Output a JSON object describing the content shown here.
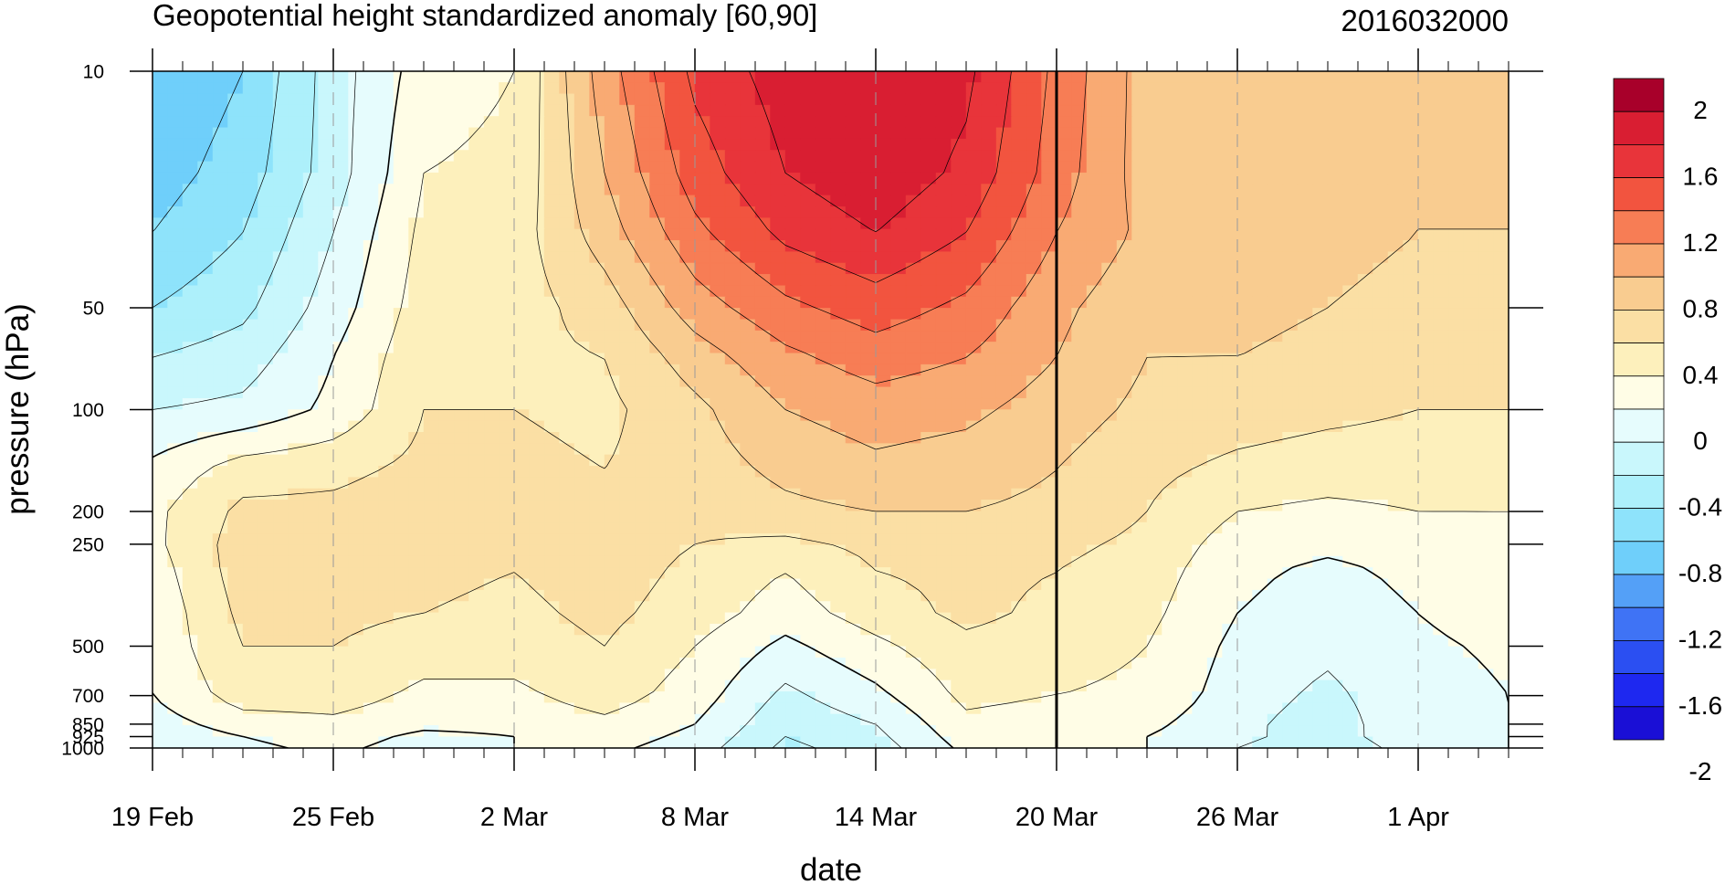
{
  "chart_data": {
    "type": "heatmap",
    "title": "Geopotential height standardized anomaly [60,90]",
    "timestamp": "2016032000",
    "xlabel": "date",
    "ylabel": "pressure (hPa)",
    "x_ticks": [
      {
        "day": 0,
        "label": "19 Feb"
      },
      {
        "day": 6,
        "label": "25 Feb"
      },
      {
        "day": 12,
        "label": "2 Mar"
      },
      {
        "day": 18,
        "label": "8 Mar"
      },
      {
        "day": 24,
        "label": "14 Mar"
      },
      {
        "day": 30,
        "label": "20 Mar"
      },
      {
        "day": 36,
        "label": "26 Mar"
      },
      {
        "day": 42,
        "label": "1 Apr"
      }
    ],
    "x_range_days": [
      0,
      45
    ],
    "y_ticks": [
      {
        "p": 10,
        "label": "10"
      },
      {
        "p": 50,
        "label": "50"
      },
      {
        "p": 100,
        "label": "100"
      },
      {
        "p": 200,
        "label": "200"
      },
      {
        "p": 250,
        "label": "250"
      },
      {
        "p": 500,
        "label": "500"
      },
      {
        "p": 700,
        "label": "700"
      },
      {
        "p": 850,
        "label": "850"
      },
      {
        "p": 925,
        "label": "925"
      },
      {
        "p": 1000,
        "label": "1000"
      }
    ],
    "y_range_hpa": [
      1000,
      10
    ],
    "y_scale": "log",
    "current_date_marker": "20 Mar",
    "levels": [
      -2,
      -1.8,
      -1.6,
      -1.4,
      -1.2,
      -1,
      -0.8,
      -0.6,
      -0.4,
      -0.2,
      0,
      0.2,
      0.4,
      0.6,
      0.8,
      1,
      1.2,
      1.4,
      1.6,
      1.8,
      2
    ],
    "colorbar_labels": [
      "2",
      "1.6",
      "1.2",
      "0.8",
      "0.4",
      "0",
      "-0.4",
      "-0.8",
      "-1.2",
      "-1.6",
      "-2"
    ],
    "colors": [
      "#1a0fd6",
      "#1e28f0",
      "#2b4ff2",
      "#3f73f5",
      "#54a0f7",
      "#6fcffa",
      "#8ee3fb",
      "#adf0fb",
      "#c9f7fc",
      "#e6fcfd",
      "#fffde6",
      "#fdf0bc",
      "#fbdfa4",
      "#f9cc90",
      "#f9aa73",
      "#f77d55",
      "#f2543f",
      "#e8343a",
      "#d91e32",
      "#a8002a"
    ],
    "pressure_levels": [
      10,
      20,
      30,
      50,
      70,
      100,
      150,
      200,
      250,
      300,
      400,
      500,
      700,
      850,
      925,
      1000
    ],
    "time_series_days": [
      0,
      3,
      6,
      9,
      12,
      15,
      18,
      21,
      24,
      27,
      30,
      33,
      36,
      39,
      42,
      45
    ],
    "anomaly_grid": [
      [
        -1.0,
        -0.8,
        -0.3,
        0.1,
        0.2,
        0.9,
        1.45,
        1.7,
        1.8,
        1.65,
        1.15,
        0.7,
        0.7,
        0.6,
        0.6,
        0.6
      ],
      [
        -0.9,
        -0.7,
        -0.3,
        0.2,
        0.25,
        0.8,
        1.3,
        1.6,
        1.75,
        1.55,
        1.1,
        0.7,
        0.7,
        0.65,
        0.6,
        0.6
      ],
      [
        -0.8,
        -0.6,
        -0.2,
        0.25,
        0.3,
        0.7,
        1.15,
        1.45,
        1.6,
        1.4,
        1.0,
        0.75,
        0.7,
        0.65,
        0.6,
        0.6
      ],
      [
        -0.6,
        -0.45,
        -0.1,
        0.3,
        0.3,
        0.5,
        0.9,
        1.15,
        1.3,
        1.15,
        0.85,
        0.65,
        0.65,
        0.6,
        0.55,
        0.55
      ],
      [
        -0.4,
        -0.3,
        0.0,
        0.35,
        0.35,
        0.4,
        0.7,
        0.95,
        1.1,
        1.0,
        0.8,
        0.6,
        0.6,
        0.55,
        0.5,
        0.5
      ],
      [
        -0.2,
        -0.15,
        0.05,
        0.4,
        0.4,
        0.35,
        0.55,
        0.8,
        0.9,
        0.85,
        0.7,
        0.55,
        0.5,
        0.45,
        0.4,
        0.4
      ],
      [
        0.05,
        0.3,
        0.35,
        0.45,
        0.45,
        0.4,
        0.5,
        0.65,
        0.75,
        0.7,
        0.6,
        0.45,
        0.35,
        0.3,
        0.3,
        0.3
      ],
      [
        0.15,
        0.45,
        0.45,
        0.5,
        0.45,
        0.45,
        0.45,
        0.55,
        0.6,
        0.6,
        0.55,
        0.4,
        0.2,
        0.15,
        0.2,
        0.2
      ],
      [
        0.15,
        0.5,
        0.5,
        0.5,
        0.45,
        0.5,
        0.4,
        0.35,
        0.45,
        0.5,
        0.45,
        0.35,
        0.1,
        0.05,
        0.1,
        0.15
      ],
      [
        0.1,
        0.5,
        0.5,
        0.45,
        0.4,
        0.5,
        0.35,
        0.2,
        0.4,
        0.45,
        0.4,
        0.3,
        0.05,
        -0.05,
        0.05,
        0.1
      ],
      [
        0.05,
        0.45,
        0.45,
        0.4,
        0.35,
        0.45,
        0.3,
        0.1,
        0.3,
        0.45,
        0.35,
        0.25,
        0.0,
        -0.1,
        0.0,
        0.05
      ],
      [
        0.05,
        0.4,
        0.4,
        0.3,
        0.3,
        0.4,
        0.2,
        -0.05,
        0.15,
        0.35,
        0.3,
        0.2,
        -0.05,
        -0.15,
        -0.02,
        0.02
      ],
      [
        0.0,
        0.3,
        0.3,
        0.15,
        0.15,
        0.3,
        0.1,
        -0.25,
        -0.05,
        0.25,
        0.2,
        0.15,
        -0.1,
        -0.25,
        -0.05,
        0.0
      ],
      [
        -0.1,
        0.1,
        0.15,
        0.05,
        0.05,
        0.15,
        0.0,
        -0.35,
        -0.2,
        0.15,
        0.1,
        0.05,
        -0.15,
        -0.3,
        -0.05,
        0.0
      ],
      [
        -0.15,
        0.0,
        0.1,
        -0.05,
        0.0,
        0.1,
        -0.05,
        -0.4,
        -0.25,
        0.1,
        0.05,
        0.0,
        -0.15,
        -0.3,
        -0.05,
        0.0
      ],
      [
        -0.2,
        -0.05,
        0.05,
        -0.1,
        0.0,
        0.05,
        -0.1,
        -0.45,
        -0.3,
        0.05,
        0.0,
        0.0,
        -0.2,
        -0.35,
        -0.1,
        0.0
      ]
    ]
  }
}
